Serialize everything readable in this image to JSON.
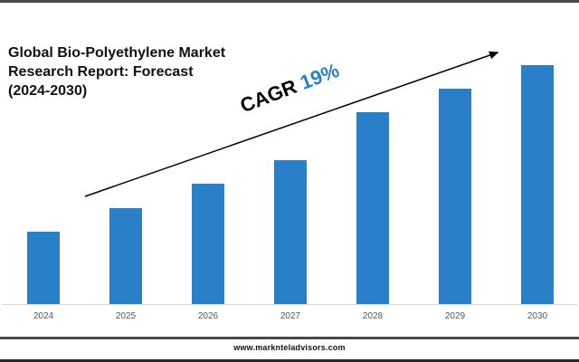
{
  "header": {
    "title_lines": [
      "Global Bio-Polyethylene Market",
      "Research Report: Forecast",
      "(2024-2030)"
    ]
  },
  "annotation": {
    "label": "CAGR",
    "value": "19%",
    "arrow": "trend-arrow"
  },
  "footer": {
    "website": "www.marknteladvisors.com"
  },
  "colors": {
    "bar": "#2980c8",
    "cagr_value": "#2980c8",
    "rule": "#4a4a4a"
  },
  "chart_data": {
    "type": "bar",
    "title": "Global Bio-Polyethylene Market Research Report: Forecast (2024-2030)",
    "categories": [
      "2024",
      "2025",
      "2026",
      "2027",
      "2028",
      "2029",
      "2030"
    ],
    "values": [
      80,
      106,
      133,
      159,
      212,
      238,
      264
    ],
    "value_units": "relative bar height (px, no y-axis shown)",
    "xlabel": "",
    "ylabel": "",
    "grid": false,
    "legend": null,
    "annotations": [
      "CAGR 19%"
    ]
  }
}
